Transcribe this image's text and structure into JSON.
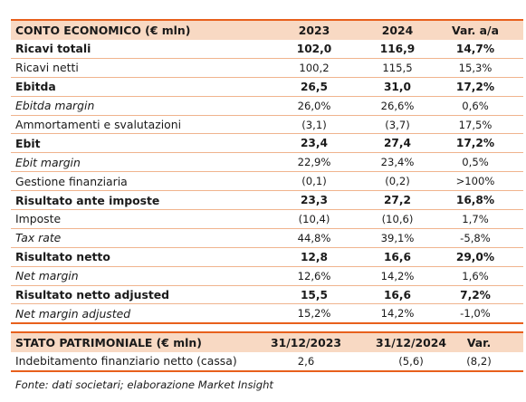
{
  "income": {
    "header": [
      "CONTO ECONOMICO (€ mln)",
      "2023",
      "2024",
      "Var. a/a"
    ],
    "rows": [
      {
        "style": "b",
        "cells": [
          "Ricavi totali",
          "102,0",
          "116,9",
          "14,7%"
        ]
      },
      {
        "style": "",
        "cells": [
          "Ricavi netti",
          "100,2",
          "115,5",
          "15,3%"
        ]
      },
      {
        "style": "b",
        "cells": [
          "Ebitda",
          "26,5",
          "31,0",
          "17,2%"
        ]
      },
      {
        "style": "it",
        "cells": [
          "Ebitda margin",
          "26,0%",
          "26,6%",
          "0,6%"
        ]
      },
      {
        "style": "",
        "cells": [
          "Ammortamenti e svalutazioni",
          "(3,1)",
          "(3,7)",
          "17,5%"
        ]
      },
      {
        "style": "b",
        "cells": [
          "Ebit",
          "23,4",
          "27,4",
          "17,2%"
        ]
      },
      {
        "style": "it",
        "cells": [
          "Ebit margin",
          "22,9%",
          "23,4%",
          "0,5%"
        ]
      },
      {
        "style": "",
        "cells": [
          "Gestione finanziaria",
          "(0,1)",
          "(0,2)",
          ">100%"
        ]
      },
      {
        "style": "b",
        "cells": [
          "Risultato ante imposte",
          "23,3",
          "27,2",
          "16,8%"
        ]
      },
      {
        "style": "",
        "cells": [
          "Imposte",
          "(10,4)",
          "(10,6)",
          "1,7%"
        ]
      },
      {
        "style": "it",
        "cells": [
          "Tax rate",
          "44,8%",
          "39,1%",
          "-5,8%"
        ]
      },
      {
        "style": "b",
        "cells": [
          "Risultato netto",
          "12,8",
          "16,6",
          "29,0%"
        ]
      },
      {
        "style": "it",
        "cells": [
          "Net margin",
          "12,6%",
          "14,2%",
          "1,6%"
        ]
      },
      {
        "style": "b",
        "cells": [
          "Risultato netto adjusted",
          "15,5",
          "16,6",
          "7,2%"
        ]
      },
      {
        "style": "it",
        "cells": [
          "Net margin adjusted",
          "15,2%",
          "14,2%",
          "-1,0%"
        ]
      }
    ]
  },
  "balance": {
    "header": [
      "STATO PATRIMONIALE (€ mln)",
      "31/12/2023",
      "31/12/2024",
      "Var."
    ],
    "rows": [
      {
        "style": "",
        "cells": [
          "Indebitamento finanziario netto (cassa)",
          "2,6",
          "(5,6)",
          "(8,2)"
        ]
      }
    ]
  },
  "source": "Fonte: dati societari; elaborazione Market Insight",
  "colors": {
    "accent": "#e8601c",
    "header_fill": "#f8d9c3",
    "row_rule": "#f0b48e"
  }
}
